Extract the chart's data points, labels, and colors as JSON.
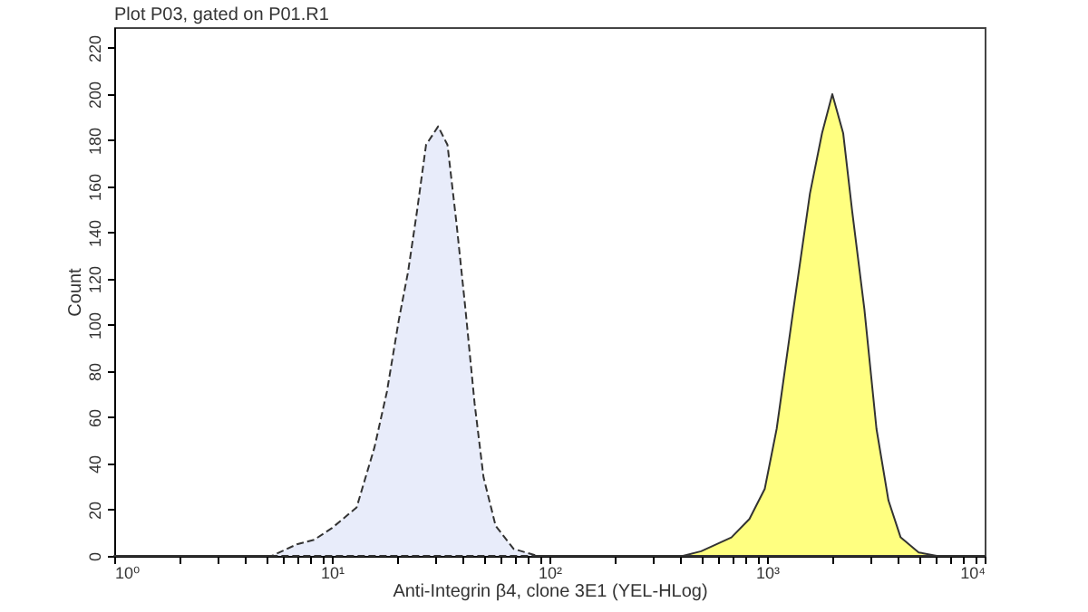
{
  "chart_data": {
    "type": "area",
    "title": "Plot P03, gated on P01.R1",
    "xlabel": "Anti-Integrin β4, clone 3E1 (YEL-HLog)",
    "ylabel": "Count",
    "log": "x",
    "grid": false,
    "legend": false,
    "xlim": [
      1,
      10000
    ],
    "ylim": [
      0,
      229
    ],
    "xticks": [
      {
        "value": 1,
        "label": "10⁰"
      },
      {
        "value": 2,
        "label": null
      },
      {
        "value": 3,
        "label": null
      },
      {
        "value": 4,
        "label": null
      },
      {
        "value": 5,
        "label": null
      },
      {
        "value": 6,
        "label": null
      },
      {
        "value": 7,
        "label": null
      },
      {
        "value": 8,
        "label": null
      },
      {
        "value": 9,
        "label": null
      },
      {
        "value": 10,
        "label": "10¹"
      },
      {
        "value": 20,
        "label": null
      },
      {
        "value": 30,
        "label": null
      },
      {
        "value": 40,
        "label": null
      },
      {
        "value": 50,
        "label": null
      },
      {
        "value": 60,
        "label": null
      },
      {
        "value": 70,
        "label": null
      },
      {
        "value": 80,
        "label": null
      },
      {
        "value": 90,
        "label": null
      },
      {
        "value": 100,
        "label": "10²"
      },
      {
        "value": 200,
        "label": null
      },
      {
        "value": 300,
        "label": null
      },
      {
        "value": 400,
        "label": null
      },
      {
        "value": 500,
        "label": null
      },
      {
        "value": 600,
        "label": null
      },
      {
        "value": 700,
        "label": null
      },
      {
        "value": 800,
        "label": null
      },
      {
        "value": 900,
        "label": null
      },
      {
        "value": 1000,
        "label": "10³"
      },
      {
        "value": 2000,
        "label": null
      },
      {
        "value": 3000,
        "label": null
      },
      {
        "value": 4000,
        "label": null
      },
      {
        "value": 5000,
        "label": null
      },
      {
        "value": 6000,
        "label": null
      },
      {
        "value": 7000,
        "label": null
      },
      {
        "value": 8000,
        "label": null
      },
      {
        "value": 9000,
        "label": null
      },
      {
        "value": 10000,
        "label": "10⁴"
      }
    ],
    "yticks": [
      0,
      20,
      40,
      60,
      80,
      100,
      120,
      140,
      160,
      180,
      200,
      220
    ],
    "series": [
      {
        "color": "#e8ecfa",
        "line_style": "dashed",
        "x": [
          1,
          5.3,
          6.9,
          8.3,
          10,
          13,
          15.7,
          17.9,
          20.3,
          22.4,
          24.6,
          27.1,
          30.8,
          34,
          37.4,
          41.1,
          45.3,
          49.8,
          56.6,
          68.5,
          88,
          200
        ],
        "values": [
          0,
          0,
          5,
          7,
          12,
          21,
          47,
          71,
          102,
          123,
          149,
          178,
          186,
          178,
          144,
          107,
          66,
          34,
          13,
          3,
          0,
          0
        ]
      },
      {
        "color": "#ffff80",
        "line_style": "solid",
        "x": [
          200,
          411,
          498,
          686,
          830,
          976,
          1107,
          1300,
          1575,
          1789,
          1995,
          2239,
          2464,
          2800,
          3184,
          3614,
          4111,
          4977,
          6026,
          10000
        ],
        "values": [
          0,
          0,
          2,
          8,
          16,
          29,
          55,
          102,
          157,
          183,
          200,
          183,
          149,
          107,
          55,
          24,
          8,
          1.5,
          0,
          0
        ]
      }
    ]
  }
}
